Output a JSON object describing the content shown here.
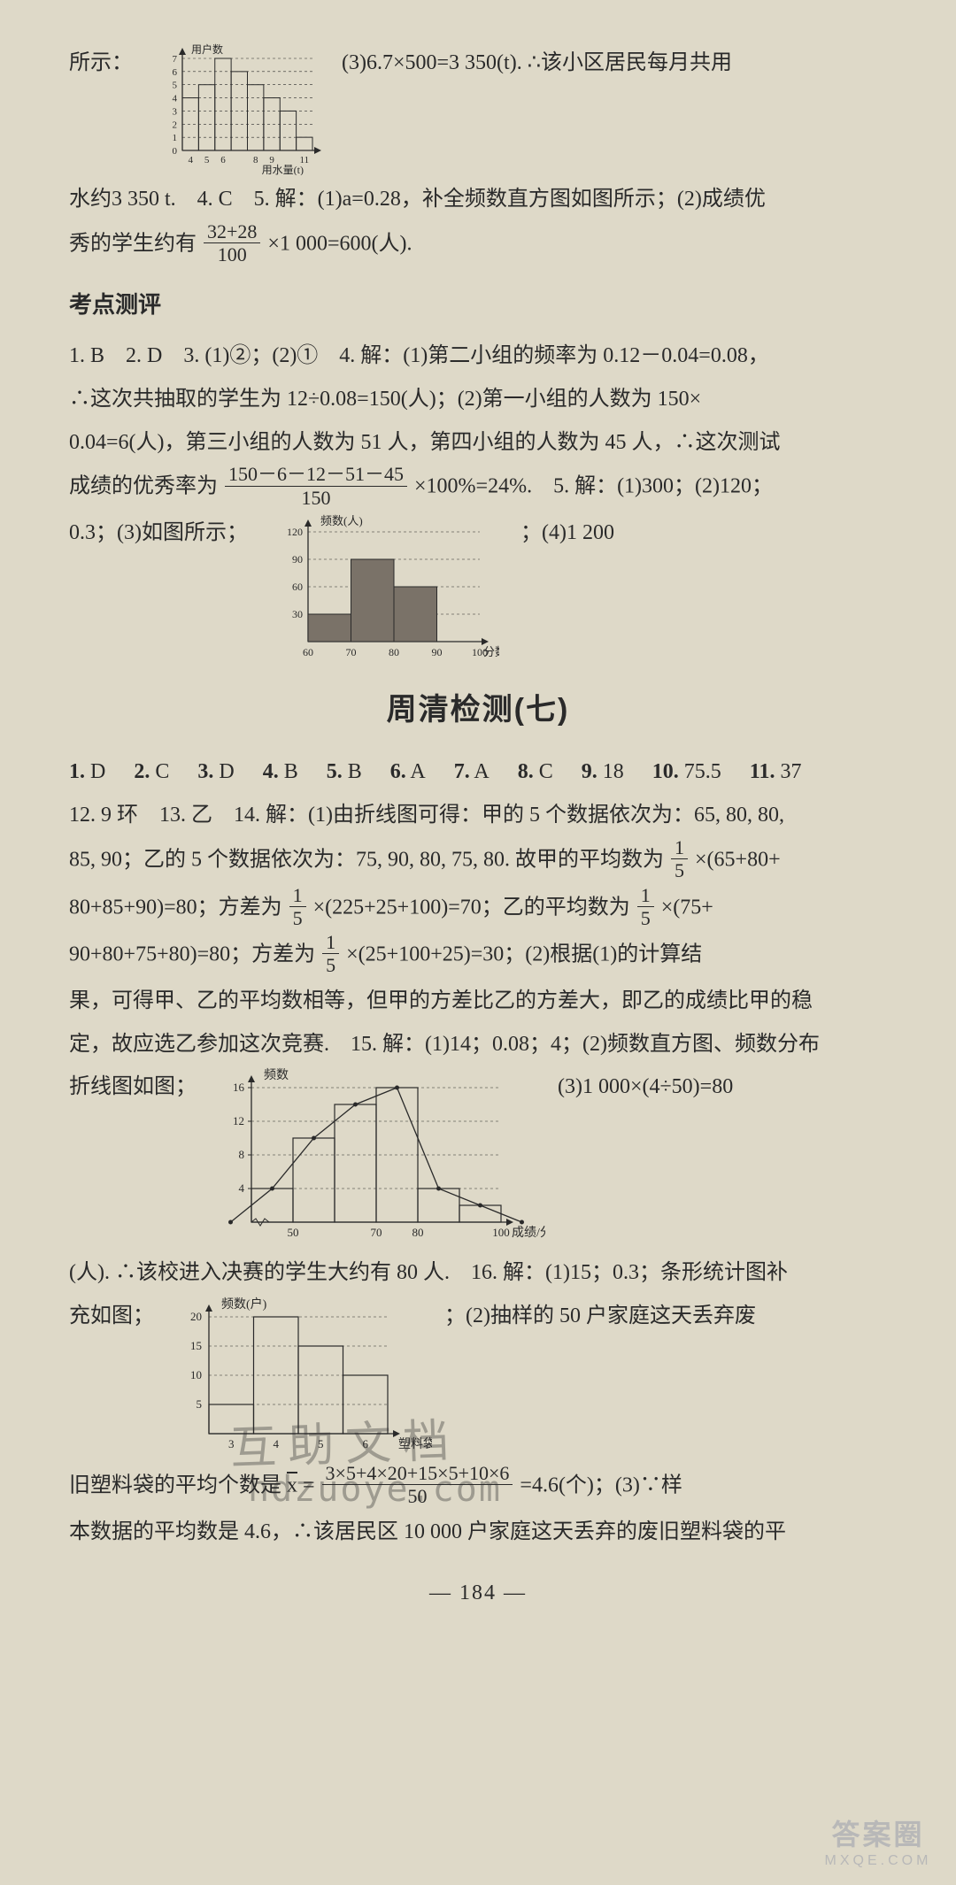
{
  "top": {
    "prefix": "所示：",
    "right_text": "(3)6.7×500=3 350(t). ∴该小区居民每月共用",
    "chart1": {
      "type": "bar",
      "x_label": "用水量(t)",
      "y_label": "用户数",
      "x_values": [
        4,
        5,
        6,
        7,
        8,
        9,
        10,
        11
      ],
      "x_ticks": [
        "4",
        "5",
        "6",
        "",
        "8",
        "9",
        "",
        "11"
      ],
      "y_ticks": [
        0,
        1,
        2,
        3,
        4,
        5,
        6,
        7
      ],
      "bars": [
        4,
        5,
        7,
        6,
        5,
        4,
        3,
        1
      ],
      "bar_color": "none",
      "bar_stroke": "#2a2a2a",
      "axis_color": "#2a2a2a",
      "tick_fontsize": 10
    },
    "cont": "水约3 350 t.　4. C　5. 解：(1)a=0.28，补全频数直方图如图所示；(2)成绩优",
    "cont2_prefix": "秀的学生约有",
    "frac_num": "32+28",
    "frac_den": "100",
    "cont2_suffix": "×1 000=600(人)."
  },
  "kaodian": {
    "title": "考点测评",
    "line1": "1. B　2. D　3. (1)②；(2)①　4. 解：(1)第二小组的频率为 0.12－0.04=0.08，",
    "line2": "∴这次共抽取的学生为 12÷0.08=150(人)；(2)第一小组的人数为 150×",
    "line3": "0.04=6(人)，第三小组的人数为 51 人，第四小组的人数为 45 人，∴这次测试",
    "line4_prefix": "成绩的优秀率为",
    "line4_frac_num": "150－6－12－51－45",
    "line4_frac_den": "150",
    "line4_suffix": "×100%=24%.　5. 解：(1)300；(2)120；",
    "line5_prefix": "0.3；(3)如图所示；",
    "line5_suffix": "；(4)1 200",
    "chart2": {
      "type": "bar",
      "x_label": "分数(分)",
      "y_label": "频数(人)",
      "x_ticks": [
        "60",
        "70",
        "80",
        "90",
        "100"
      ],
      "y_ticks": [
        30,
        60,
        90,
        120
      ],
      "bars": [
        30,
        90,
        60
      ],
      "bar_x_start": 1,
      "bar_color": "#7a7268",
      "bar_stroke": "#2a2a2a",
      "axis_color": "#2a2a2a"
    }
  },
  "weekly": {
    "title": "周清检测(七)",
    "mc_line1": [
      {
        "n": "1.",
        "a": "D"
      },
      {
        "n": "2.",
        "a": "C"
      },
      {
        "n": "3.",
        "a": "D"
      },
      {
        "n": "4.",
        "a": "B"
      },
      {
        "n": "5.",
        "a": "B"
      },
      {
        "n": "6.",
        "a": "A"
      },
      {
        "n": "7.",
        "a": "A"
      },
      {
        "n": "8.",
        "a": "C"
      },
      {
        "n": "9.",
        "a": "18"
      },
      {
        "n": "10.",
        "a": "75.5"
      },
      {
        "n": "11.",
        "a": "37"
      }
    ],
    "line2": "12. 9 环　13. 乙　14. 解：(1)由折线图可得：甲的 5 个数据依次为：65, 80, 80,",
    "line3_prefix": "85, 90；乙的 5 个数据依次为：75, 90, 80, 75, 80. 故甲的平均数为",
    "line3_frac_num": "1",
    "line3_frac_den": "5",
    "line3_suffix": "×(65+80+",
    "line4_prefix": "80+85+90)=80；方差为",
    "line4_frac1_num": "1",
    "line4_frac1_den": "5",
    "line4_mid": "×(225+25+100)=70；乙的平均数为",
    "line4_frac2_num": "1",
    "line4_frac2_den": "5",
    "line4_suffix": "×(75+",
    "line5_prefix": "90+80+75+80)=80；方差为",
    "line5_frac_num": "1",
    "line5_frac_den": "5",
    "line5_suffix": "×(25+100+25)=30；(2)根据(1)的计算结",
    "line6": "果，可得甲、乙的平均数相等，但甲的方差比乙的方差大，即乙的成绩比甲的稳",
    "line7": "定，故应选乙参加这次竞赛.　15. 解：(1)14；0.08；4；(2)频数直方图、频数分布",
    "line8_prefix": "折线图如图；",
    "line8_right": "(3)1 000×(4÷50)=80",
    "chart3": {
      "type": "bar+line",
      "x_label": "成绩/分",
      "y_label": "频数",
      "x_ticks": [
        "40",
        "50",
        "60",
        "70",
        "80",
        "90",
        "100"
      ],
      "x_tick_draw": [
        0,
        1,
        0,
        1,
        1,
        0,
        1
      ],
      "y_ticks": [
        4,
        8,
        12,
        16
      ],
      "bars": [
        4,
        10,
        14,
        16,
        4,
        2
      ],
      "line_points_y": [
        0,
        4,
        10,
        14,
        16,
        4,
        2,
        0
      ],
      "bar_color": "none",
      "bar_stroke": "#2a2a2a",
      "line_color": "#2a2a2a"
    },
    "line9": "(人). ∴该校进入决赛的学生大约有 80 人.　16. 解：(1)15；0.3；条形统计图补",
    "line10_prefix": "充如图；",
    "line10_right": "；(2)抽样的 50 户家庭这天丢弃废",
    "chart4": {
      "type": "bar",
      "x_label": "塑料袋(个)",
      "y_label": "频数(户)",
      "x_ticks": [
        "3",
        "4",
        "5",
        "6"
      ],
      "y_ticks": [
        5,
        10,
        15,
        20
      ],
      "bars": [
        5,
        20,
        15,
        10
      ],
      "bar_color": "none",
      "bar_stroke": "#2a2a2a"
    },
    "line11_prefix": "旧塑料袋的平均个数是 x̄ =",
    "line11_frac_num": "3×5+4×20+15×5+10×6",
    "line11_frac_den": "50",
    "line11_suffix": "=4.6(个)；(3)∵样",
    "line12": "本数据的平均数是 4.6，∴该居民区 10 000 户家庭这天丢弃的废旧塑料袋的平"
  },
  "pagefoot": "— 184 —",
  "watermark1": "互 助 文 档",
  "watermark2": "hdzuoye.com",
  "corner_big": "答案圈",
  "corner_small": "MXQE.COM"
}
